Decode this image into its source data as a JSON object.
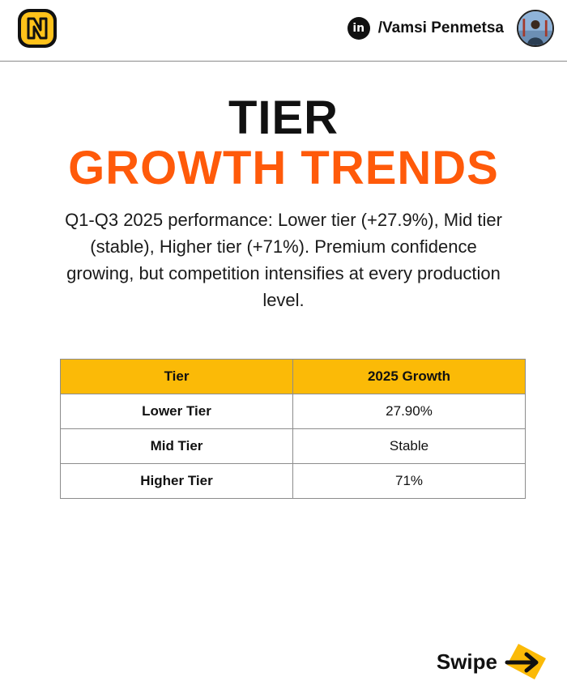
{
  "header": {
    "logo_letter": "N",
    "linkedin_icon": "linkedin-icon",
    "linkedin_text": "in",
    "handle": "/Vamsi Penmetsa"
  },
  "title": {
    "line1": "TIER",
    "line2": "GROWTH TRENDS"
  },
  "description": "Q1-Q3 2025 performance: Lower tier (+27.9%), Mid tier (stable), Higher tier (+71%). Premium confidence growing, but competition intensifies at every production level.",
  "table": {
    "headers": [
      "Tier",
      "2025 Growth"
    ],
    "rows": [
      [
        "Lower Tier",
        "27.90%"
      ],
      [
        "Mid Tier",
        "Stable"
      ],
      [
        "Higher Tier",
        "71%"
      ]
    ]
  },
  "footer": {
    "swipe_label": "Swipe",
    "swipe_icon": "arrow-right-icon"
  },
  "colors": {
    "accent_orange": "#ff5a0a",
    "table_header": "#fbba07",
    "logo_yellow": "#ffc21a"
  }
}
